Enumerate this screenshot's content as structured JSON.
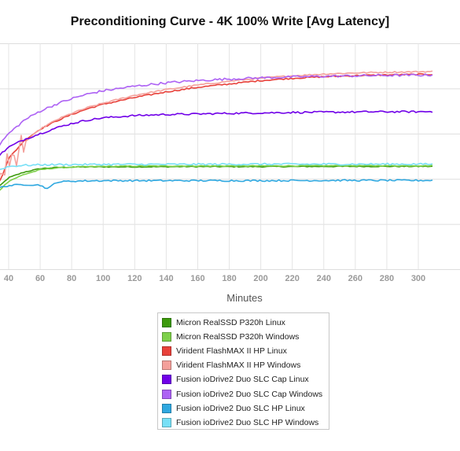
{
  "chart_data": {
    "type": "line",
    "title": "Preconditioning Curve - 4K 100% Write [Avg Latency]",
    "xlabel": "Minutes",
    "ylabel": "",
    "xlim": [
      30,
      310
    ],
    "ylim": [
      0,
      1
    ],
    "y_tick_labels_visible": false,
    "x_ticks": [
      40,
      60,
      80,
      100,
      120,
      140,
      160,
      180,
      200,
      220,
      240,
      260,
      280,
      300
    ],
    "grid": true,
    "legend_position": "bottom-center",
    "series": [
      {
        "name": "Micron RealSSD P320h Linux",
        "color": "#3c9a0c",
        "x": [
          30,
          40,
          50,
          60,
          70,
          80,
          100,
          120,
          150,
          200,
          250,
          300,
          310
        ],
        "y": [
          0.34,
          0.405,
          0.43,
          0.445,
          0.45,
          0.452,
          0.453,
          0.453,
          0.454,
          0.454,
          0.455,
          0.455,
          0.455
        ]
      },
      {
        "name": "Micron RealSSD P320h Windows",
        "color": "#7ed04a",
        "x": [
          30,
          40,
          50,
          60,
          70,
          80,
          100,
          120,
          150,
          200,
          250,
          300,
          310
        ],
        "y": [
          0.32,
          0.39,
          0.42,
          0.44,
          0.448,
          0.452,
          0.455,
          0.456,
          0.457,
          0.457,
          0.458,
          0.458,
          0.458
        ]
      },
      {
        "name": "Virident FlashMAX II HP Linux",
        "color": "#e8413a",
        "x": [
          30,
          35,
          40,
          50,
          60,
          70,
          80,
          90,
          100,
          120,
          140,
          160,
          180,
          200,
          220,
          240,
          260,
          280,
          300,
          310
        ],
        "y": [
          0.34,
          0.4,
          0.49,
          0.57,
          0.62,
          0.655,
          0.685,
          0.71,
          0.73,
          0.76,
          0.785,
          0.805,
          0.82,
          0.835,
          0.845,
          0.852,
          0.857,
          0.86,
          0.862,
          0.863
        ]
      },
      {
        "name": "Virident FlashMAX II HP Windows",
        "color": "#f4a09b",
        "x": [
          30,
          35,
          40,
          50,
          60,
          70,
          80,
          90,
          100,
          120,
          140,
          160,
          180,
          200,
          220,
          240,
          260,
          280,
          300,
          310
        ],
        "y": [
          0.33,
          0.42,
          0.47,
          0.56,
          0.62,
          0.66,
          0.69,
          0.715,
          0.735,
          0.77,
          0.795,
          0.815,
          0.832,
          0.846,
          0.856,
          0.864,
          0.869,
          0.872,
          0.874,
          0.875
        ]
      },
      {
        "name": "Fusion ioDrive2 Duo SLC Cap Linux",
        "color": "#7000e8",
        "x": [
          30,
          35,
          40,
          50,
          60,
          70,
          80,
          90,
          100,
          120,
          140,
          160,
          180,
          200,
          220,
          240,
          260,
          280,
          300,
          310
        ],
        "y": [
          0.48,
          0.51,
          0.54,
          0.575,
          0.6,
          0.625,
          0.645,
          0.66,
          0.67,
          0.68,
          0.685,
          0.687,
          0.69,
          0.692,
          0.694,
          0.695,
          0.696,
          0.697,
          0.697,
          0.698
        ]
      },
      {
        "name": "Fusion ioDrive2 Duo SLC Cap Windows",
        "color": "#ad62f4",
        "x": [
          30,
          35,
          40,
          50,
          60,
          70,
          80,
          90,
          100,
          120,
          140,
          160,
          180,
          200,
          220,
          240,
          260,
          280,
          300,
          310
        ],
        "y": [
          0.5,
          0.56,
          0.6,
          0.66,
          0.7,
          0.73,
          0.755,
          0.775,
          0.79,
          0.81,
          0.825,
          0.835,
          0.842,
          0.847,
          0.851,
          0.854,
          0.856,
          0.858,
          0.859,
          0.86
        ]
      },
      {
        "name": "Fusion ioDrive2 Duo SLC HP Linux",
        "color": "#2fa8e0",
        "x": [
          30,
          40,
          50,
          60,
          65,
          70,
          80,
          100,
          120,
          150,
          200,
          250,
          300,
          310
        ],
        "y": [
          0.355,
          0.37,
          0.375,
          0.372,
          0.355,
          0.385,
          0.39,
          0.392,
          0.392,
          0.392,
          0.392,
          0.393,
          0.393,
          0.393
        ]
      },
      {
        "name": "Fusion ioDrive2 Duo SLC HP Windows",
        "color": "#78e0f6",
        "x": [
          30,
          40,
          50,
          60,
          70,
          80,
          100,
          120,
          150,
          200,
          250,
          300,
          310
        ],
        "y": [
          0.43,
          0.455,
          0.46,
          0.462,
          0.463,
          0.463,
          0.464,
          0.464,
          0.464,
          0.465,
          0.465,
          0.465,
          0.465
        ]
      }
    ]
  }
}
